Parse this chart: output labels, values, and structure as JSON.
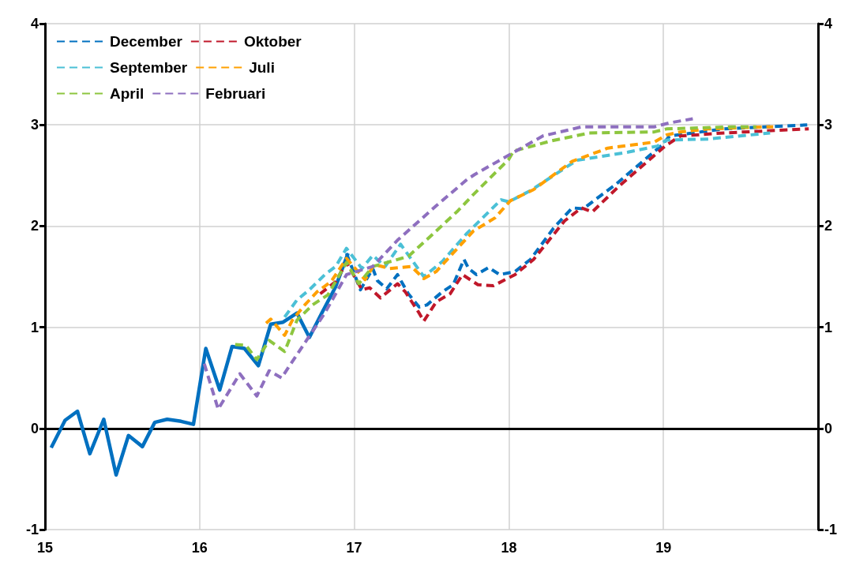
{
  "chart_data": {
    "type": "line",
    "legend": "top left",
    "grid": true,
    "marker": "none",
    "xlim": [
      15,
      20
    ],
    "xticks": [
      15,
      16,
      17,
      18,
      19
    ],
    "ylim": [
      -1,
      4
    ],
    "yticks": [
      -1,
      0,
      1,
      2,
      3,
      4
    ],
    "y2lim": [
      -1,
      4
    ],
    "y2ticks": [
      -1,
      0,
      1,
      2,
      3,
      4
    ],
    "ref_lines": [
      {
        "axis": "y",
        "value": 0,
        "label": null,
        "color": "#000000"
      }
    ],
    "series": [
      {
        "color": "#0070c0",
        "line_style": "solid",
        "x": [
          15.04,
          15.13,
          15.21,
          15.29,
          15.38,
          15.46,
          15.54,
          15.63,
          15.71,
          15.79,
          15.88,
          15.96,
          16.04,
          16.13,
          16.21,
          16.29,
          16.38,
          16.46,
          16.54,
          16.63,
          16.71,
          16.79,
          16.88,
          16.96
        ],
        "values": [
          -0.19,
          0.08,
          0.17,
          -0.25,
          0.09,
          -0.46,
          -0.07,
          -0.18,
          0.06,
          0.09,
          0.07,
          0.04,
          0.79,
          0.38,
          0.81,
          0.79,
          0.62,
          1.03,
          1.05,
          1.14,
          0.9,
          1.14,
          1.4,
          1.73
        ]
      },
      {
        "name": "December",
        "color": "#0070c0",
        "line_style": "dashed",
        "x": [
          16.95,
          17.04,
          17.12,
          17.15,
          17.21,
          17.28,
          17.35,
          17.42,
          17.47,
          17.57,
          17.64,
          17.71,
          17.74,
          17.79,
          17.87,
          17.94,
          18.04,
          18.14,
          18.29,
          18.41,
          18.48,
          18.69,
          18.99,
          19.04,
          19.39,
          19.93
        ],
        "values": [
          1.73,
          1.37,
          1.58,
          1.46,
          1.38,
          1.52,
          1.33,
          1.2,
          1.22,
          1.35,
          1.42,
          1.67,
          1.58,
          1.52,
          1.59,
          1.52,
          1.55,
          1.67,
          1.98,
          2.18,
          2.17,
          2.41,
          2.8,
          2.89,
          2.96,
          3.0
        ]
      },
      {
        "name": "Oktober",
        "color": "#c0182a",
        "line_style": "dashed",
        "x": [
          16.78,
          16.88,
          16.95,
          17.05,
          17.1,
          17.17,
          17.28,
          17.33,
          17.42,
          17.45,
          17.53,
          17.62,
          17.7,
          17.8,
          17.9,
          18.04,
          18.16,
          18.36,
          18.47,
          18.54,
          18.71,
          19.01,
          19.11,
          19.39,
          19.94
        ],
        "values": [
          1.33,
          1.45,
          1.64,
          1.37,
          1.39,
          1.29,
          1.43,
          1.35,
          1.14,
          1.06,
          1.25,
          1.33,
          1.52,
          1.42,
          1.41,
          1.52,
          1.67,
          2.05,
          2.18,
          2.14,
          2.39,
          2.79,
          2.89,
          2.92,
          2.96
        ]
      },
      {
        "name": "September",
        "color": "#4bc0d6",
        "line_style": "dashed",
        "x": [
          16.55,
          16.63,
          16.71,
          16.81,
          16.88,
          16.95,
          17.05,
          17.12,
          17.2,
          17.3,
          17.45,
          17.57,
          17.73,
          17.95,
          18.0,
          18.14,
          18.44,
          18.77,
          18.96,
          19.02,
          19.29,
          19.69
        ],
        "values": [
          1.1,
          1.27,
          1.37,
          1.52,
          1.6,
          1.78,
          1.58,
          1.71,
          1.6,
          1.82,
          1.5,
          1.65,
          1.93,
          2.26,
          2.24,
          2.35,
          2.65,
          2.73,
          2.79,
          2.85,
          2.86,
          2.92
        ]
      },
      {
        "name": "Juli",
        "color": "#ffa000",
        "line_style": "dashed",
        "x": [
          16.43,
          16.46,
          16.55,
          16.6,
          16.68,
          16.76,
          16.85,
          16.95,
          17.07,
          17.13,
          17.23,
          17.37,
          17.45,
          17.53,
          17.77,
          17.91,
          18.01,
          18.16,
          18.41,
          18.64,
          18.94,
          19.02,
          19.11,
          19.29,
          19.66,
          19.71
        ],
        "values": [
          1.04,
          1.08,
          0.92,
          1.07,
          1.22,
          1.35,
          1.45,
          1.68,
          1.47,
          1.62,
          1.58,
          1.6,
          1.48,
          1.55,
          1.95,
          2.08,
          2.25,
          2.36,
          2.64,
          2.77,
          2.83,
          2.9,
          2.93,
          2.96,
          2.98,
          2.98
        ]
      },
      {
        "name": "April",
        "color": "#8dc63f",
        "line_style": "dashed",
        "x": [
          16.23,
          16.3,
          16.37,
          16.45,
          16.55,
          16.63,
          16.73,
          16.83,
          16.95,
          17.03,
          17.12,
          17.35,
          17.48,
          17.67,
          17.77,
          18.0,
          18.03,
          18.27,
          18.52,
          18.94,
          19.02,
          19.44,
          19.6
        ],
        "values": [
          0.83,
          0.82,
          0.68,
          0.87,
          0.76,
          1.07,
          1.22,
          1.32,
          1.64,
          1.43,
          1.6,
          1.7,
          1.88,
          2.15,
          2.31,
          2.66,
          2.74,
          2.84,
          2.92,
          2.93,
          2.96,
          2.98,
          2.98
        ]
      },
      {
        "name": "Februari",
        "color": "#8e6fbf",
        "line_style": "dashed",
        "x": [
          16.03,
          16.12,
          16.26,
          16.37,
          16.45,
          16.53,
          16.7,
          16.81,
          16.95,
          17.12,
          17.28,
          17.53,
          17.73,
          17.78,
          18.01,
          18.22,
          18.47,
          18.94,
          19.04,
          19.19
        ],
        "values": [
          0.64,
          0.19,
          0.54,
          0.32,
          0.57,
          0.5,
          0.89,
          1.14,
          1.52,
          1.6,
          1.86,
          2.2,
          2.46,
          2.51,
          2.71,
          2.89,
          2.98,
          2.98,
          3.02,
          3.06
        ]
      }
    ]
  }
}
